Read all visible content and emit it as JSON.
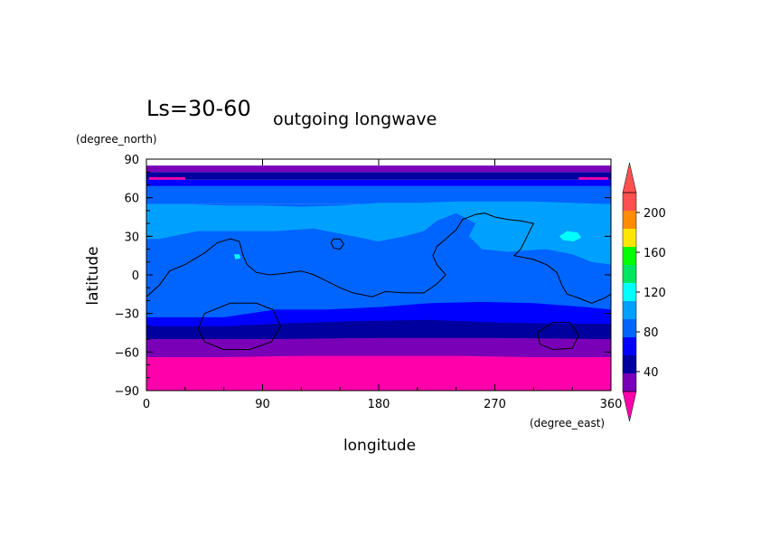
{
  "chart_data": {
    "type": "heatmap",
    "title": "Ls=30-60",
    "subtitle": "outgoing longwave",
    "xlabel": "longitude",
    "ylabel": "latitude",
    "x_unit": "(degree_east)",
    "y_unit": "(degree_north)",
    "xlim": [
      0,
      360
    ],
    "ylim": [
      -90,
      90
    ],
    "x_ticks": [
      0,
      90,
      180,
      270,
      360
    ],
    "y_ticks": [
      90,
      60,
      30,
      0,
      -30,
      -60,
      -90
    ],
    "x_tick_labels": [
      "0",
      "90",
      "180",
      "270",
      "360"
    ],
    "y_tick_labels": [
      "90",
      "60",
      "30",
      "0",
      "−30",
      "−60",
      "−90"
    ],
    "colorbar": {
      "levels": [
        20,
        40,
        60,
        80,
        100,
        120,
        140,
        160,
        180,
        200,
        220
      ],
      "tick_labels": [
        "40",
        "80",
        "120",
        "160",
        "200"
      ],
      "tick_values": [
        40,
        80,
        120,
        160,
        200
      ],
      "colors": [
        "#7a00b8",
        "#00009e",
        "#0000ff",
        "#0064ff",
        "#00a0ff",
        "#00ffff",
        "#00e660",
        "#00ff00",
        "#ffe600",
        "#ff8c00",
        "#ff5050"
      ],
      "under_color": "#ff00aa",
      "over_color": "#ff5050"
    },
    "bands": [
      {
        "lat_from": -90,
        "lat_to": -64,
        "value": 15
      },
      {
        "lat_from": -64,
        "lat_to": -50,
        "value": 30
      },
      {
        "lat_from": -50,
        "lat_to": -42,
        "value": 50
      },
      {
        "lat_from": -42,
        "lat_to": -33,
        "value": 70
      },
      {
        "lat_from": -33,
        "lat_to": 55,
        "value": 90
      },
      {
        "lat_from": 55,
        "lat_to": 69,
        "value": 90
      },
      {
        "lat_from": 69,
        "lat_to": 74,
        "value": 70
      },
      {
        "lat_from": 74,
        "lat_to": 80,
        "value": 50
      },
      {
        "lat_from": 80,
        "lat_to": 85,
        "value": 30
      }
    ],
    "regions": [
      {
        "value": 110,
        "points": [
          [
            10,
            28
          ],
          [
            40,
            34
          ],
          [
            70,
            34
          ],
          [
            100,
            34
          ],
          [
            130,
            36
          ],
          [
            160,
            30
          ],
          [
            180,
            26
          ],
          [
            200,
            30
          ],
          [
            215,
            34
          ],
          [
            225,
            42
          ],
          [
            240,
            48
          ],
          [
            255,
            40
          ],
          [
            250,
            30
          ],
          [
            260,
            20
          ],
          [
            280,
            18
          ],
          [
            310,
            20
          ],
          [
            330,
            16
          ],
          [
            345,
            10
          ],
          [
            360,
            8
          ],
          [
            360,
            55
          ],
          [
            330,
            56
          ],
          [
            300,
            57
          ],
          [
            270,
            57
          ],
          [
            240,
            57
          ],
          [
            210,
            56
          ],
          [
            180,
            56
          ],
          [
            150,
            54
          ],
          [
            120,
            53
          ],
          [
            90,
            54
          ],
          [
            60,
            54
          ],
          [
            30,
            55
          ],
          [
            0,
            55
          ],
          [
            0,
            28
          ]
        ]
      },
      {
        "value": 130,
        "points": [
          [
            320,
            30
          ],
          [
            326,
            34
          ],
          [
            334,
            33
          ],
          [
            337,
            29
          ],
          [
            331,
            26
          ],
          [
            323,
            27
          ]
        ]
      },
      {
        "value": 130,
        "points": [
          [
            68,
            16
          ],
          [
            72,
            16
          ],
          [
            73,
            13
          ],
          [
            69,
            12
          ]
        ]
      },
      {
        "value": 90,
        "points": [
          [
            10,
            10
          ],
          [
            30,
            12
          ],
          [
            55,
            15
          ],
          [
            65,
            8
          ],
          [
            75,
            0
          ],
          [
            100,
            -3
          ],
          [
            130,
            -8
          ],
          [
            160,
            -13
          ],
          [
            190,
            -13
          ],
          [
            215,
            -8
          ],
          [
            240,
            -6
          ],
          [
            270,
            -5
          ],
          [
            300,
            -8
          ],
          [
            330,
            -13
          ],
          [
            360,
            -16
          ],
          [
            360,
            -33
          ],
          [
            0,
            -33
          ],
          [
            0,
            -10
          ],
          [
            8,
            5
          ]
        ]
      },
      {
        "value": 70,
        "points": [
          [
            0,
            -33
          ],
          [
            60,
            -33
          ],
          [
            100,
            -27
          ],
          [
            140,
            -27
          ],
          [
            180,
            -25
          ],
          [
            220,
            -22
          ],
          [
            260,
            -21
          ],
          [
            300,
            -22
          ],
          [
            340,
            -25
          ],
          [
            360,
            -27
          ],
          [
            360,
            -40
          ],
          [
            0,
            -40
          ]
        ]
      },
      {
        "value": 50,
        "points": [
          [
            0,
            -40
          ],
          [
            60,
            -40
          ],
          [
            100,
            -38
          ],
          [
            160,
            -36
          ],
          [
            220,
            -35
          ],
          [
            270,
            -37
          ],
          [
            320,
            -38
          ],
          [
            360,
            -38
          ],
          [
            360,
            -50
          ],
          [
            0,
            -50
          ]
        ]
      },
      {
        "value": 30,
        "points": [
          [
            0,
            -50
          ],
          [
            90,
            -50
          ],
          [
            180,
            -49
          ],
          [
            270,
            -49
          ],
          [
            360,
            -50
          ],
          [
            360,
            -64
          ],
          [
            0,
            -64
          ]
        ]
      },
      {
        "value": 15,
        "points": [
          [
            0,
            -64
          ],
          [
            60,
            -64
          ],
          [
            120,
            -63
          ],
          [
            180,
            -63
          ],
          [
            240,
            -63
          ],
          [
            300,
            -64
          ],
          [
            360,
            -64
          ],
          [
            360,
            -90
          ],
          [
            0,
            -90
          ]
        ]
      },
      {
        "value": 15,
        "points": [
          [
            2,
            76
          ],
          [
            30,
            76
          ],
          [
            30,
            74
          ],
          [
            2,
            74
          ]
        ]
      },
      {
        "value": 15,
        "points": [
          [
            335,
            76
          ],
          [
            358,
            76
          ],
          [
            358,
            74
          ],
          [
            335,
            74
          ]
        ]
      }
    ],
    "contours": [
      {
        "points": [
          [
            0,
            -17
          ],
          [
            10,
            -8
          ],
          [
            18,
            3
          ],
          [
            30,
            8
          ],
          [
            45,
            17
          ],
          [
            55,
            25
          ],
          [
            65,
            28
          ],
          [
            72,
            26
          ],
          [
            75,
            15
          ],
          [
            78,
            8
          ],
          [
            85,
            2
          ],
          [
            95,
            0
          ],
          [
            105,
            1
          ],
          [
            120,
            3
          ],
          [
            130,
            0
          ],
          [
            140,
            -5
          ],
          [
            150,
            -10
          ],
          [
            160,
            -14
          ],
          [
            175,
            -17
          ],
          [
            185,
            -13
          ],
          [
            200,
            -14
          ],
          [
            215,
            -14
          ],
          [
            225,
            -7
          ],
          [
            232,
            0
          ],
          [
            225,
            8
          ],
          [
            222,
            15
          ],
          [
            225,
            22
          ],
          [
            232,
            28
          ],
          [
            240,
            35
          ],
          [
            245,
            43
          ],
          [
            255,
            47
          ],
          [
            262,
            48
          ],
          [
            270,
            45
          ],
          [
            280,
            43
          ],
          [
            290,
            42
          ],
          [
            300,
            40
          ],
          [
            295,
            30
          ],
          [
            290,
            20
          ],
          [
            285,
            15
          ],
          [
            300,
            12
          ],
          [
            310,
            8
          ],
          [
            318,
            2
          ],
          [
            322,
            -8
          ],
          [
            326,
            -15
          ],
          [
            335,
            -18
          ],
          [
            345,
            -22
          ],
          [
            355,
            -18
          ],
          [
            360,
            -15
          ]
        ]
      },
      {
        "points": [
          [
            145,
            28
          ],
          [
            150,
            28
          ],
          [
            153,
            24
          ],
          [
            150,
            20
          ],
          [
            145,
            21
          ],
          [
            143,
            25
          ],
          [
            145,
            28
          ]
        ]
      },
      {
        "points": [
          [
            45,
            -30
          ],
          [
            65,
            -22
          ],
          [
            85,
            -22
          ],
          [
            98,
            -27
          ],
          [
            104,
            -40
          ],
          [
            97,
            -52
          ],
          [
            80,
            -58
          ],
          [
            60,
            -58
          ],
          [
            45,
            -52
          ],
          [
            40,
            -42
          ],
          [
            45,
            -30
          ]
        ]
      },
      {
        "points": [
          [
            303,
            -45
          ],
          [
            315,
            -37
          ],
          [
            328,
            -37
          ],
          [
            335,
            -47
          ],
          [
            330,
            -57
          ],
          [
            315,
            -58
          ],
          [
            305,
            -54
          ],
          [
            303,
            -45
          ]
        ]
      }
    ]
  }
}
